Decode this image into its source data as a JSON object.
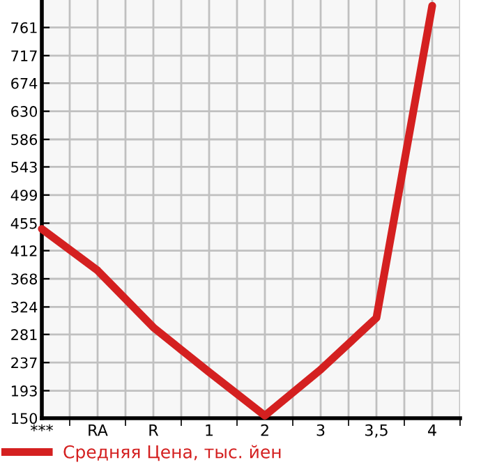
{
  "chart_data": {
    "type": "line",
    "categories": [
      "***",
      "RA",
      "R",
      "1",
      "2",
      "3",
      "3,5",
      "4"
    ],
    "series": [
      {
        "name": "Средняя Цена, тыс. йен",
        "color": "#d42020",
        "values": [
          446,
          381,
          292,
          222,
          154,
          226,
          307,
          795
        ]
      }
    ],
    "ylim": [
      150,
      804
    ],
    "yticks": [
      150,
      193,
      237,
      281,
      324,
      368,
      412,
      455,
      499,
      543,
      586,
      630,
      674,
      717,
      761
    ],
    "grid": true,
    "legend": "bottom",
    "marker": "none",
    "line_style": "solid"
  }
}
